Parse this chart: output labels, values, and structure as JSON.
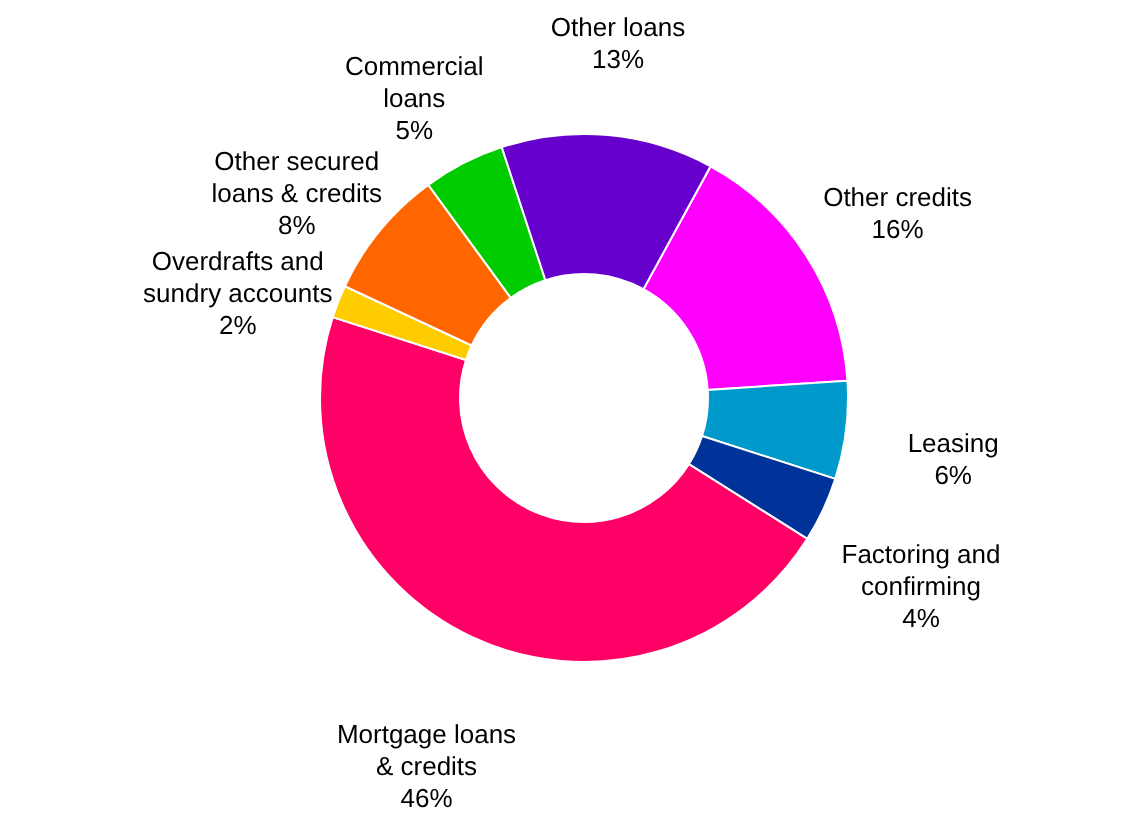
{
  "chart_data": {
    "type": "donut",
    "categories": [
      "Other credits",
      "Leasing",
      "Factoring and confirming",
      "Mortgage loans & credits",
      "Overdrafts and sundry accounts",
      "Other secured loans & credits",
      "Commercial loans",
      "Other loans"
    ],
    "values": [
      16,
      6,
      4,
      46,
      2,
      8,
      5,
      13
    ],
    "value_labels": [
      "16%",
      "6%",
      "4%",
      "46%",
      "2%",
      "8%",
      "5%",
      "13%"
    ],
    "colors": [
      "#ff00ff",
      "#0099cc",
      "#003399",
      "#ff0066",
      "#ffcc00",
      "#ff6600",
      "#00cc00",
      "#6600cc"
    ]
  }
}
